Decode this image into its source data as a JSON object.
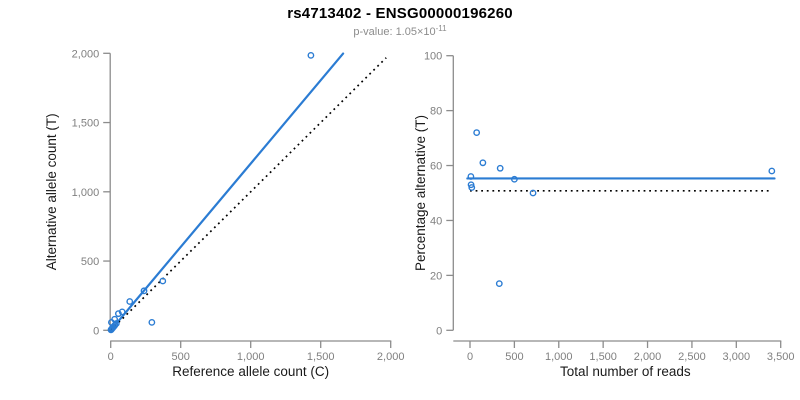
{
  "header": {
    "title": "rs4713402 - ENSG00000196260",
    "pvalue_text": "p-value: 1.05×10",
    "pvalue_exponent": "-11"
  },
  "colors": {
    "accent_blue": "#2b7cd3",
    "axis_line": "#8c8c8c",
    "tick_label": "#7f7f7f",
    "axis_title": "#1a1a1a",
    "identity_line": "#000000",
    "subtitle_text": "#8c8c8c"
  },
  "chart_data": [
    {
      "id": "allele-counts",
      "type": "scatter",
      "title": "",
      "xlabel": "Reference allele count (C)",
      "ylabel": "Alternative allele count (T)",
      "xlim": [
        0,
        2000
      ],
      "ylim": [
        0,
        2000
      ],
      "xticks": [
        0,
        500,
        1000,
        1500,
        2000
      ],
      "xtick_labels": [
        "0",
        "500",
        "1,000",
        "1,500",
        "2,000"
      ],
      "yticks": [
        0,
        500,
        1000,
        1500,
        2000
      ],
      "ytick_labels": [
        "0",
        "500",
        "1,000",
        "1,500",
        "2,000"
      ],
      "grid": false,
      "legend": "none",
      "points": [
        [
          2,
          3
        ],
        [
          6,
          8
        ],
        [
          10,
          13
        ],
        [
          15,
          19
        ],
        [
          22,
          27
        ],
        [
          30,
          37
        ],
        [
          40,
          49
        ],
        [
          5,
          57
        ],
        [
          28,
          80
        ],
        [
          55,
          120
        ],
        [
          82,
          133
        ],
        [
          136,
          208
        ],
        [
          238,
          285
        ],
        [
          294,
          57
        ],
        [
          372,
          356
        ],
        [
          1430,
          1985
        ]
      ],
      "lines": [
        {
          "name": "fitted-proportion-line",
          "style": "solid",
          "color_key": "accent_blue",
          "points": [
            [
              0,
              0
            ],
            [
              1660,
              1998
            ]
          ]
        },
        {
          "name": "identity-line",
          "style": "dotted",
          "color_key": "identity_line",
          "points": [
            [
              0,
              0
            ],
            [
              1968,
              1968
            ]
          ]
        }
      ]
    },
    {
      "id": "percentage-vs-total",
      "type": "scatter",
      "title": "",
      "xlabel": "Total number of reads",
      "ylabel": "Percentage alternative (T)",
      "xlim": [
        0,
        3500
      ],
      "ylim": [
        0,
        100
      ],
      "xticks": [
        0,
        500,
        1000,
        1500,
        2000,
        2500,
        3000,
        3500
      ],
      "xtick_labels": [
        "0",
        "500",
        "1,000",
        "1,500",
        "2,000",
        "2,500",
        "3,000",
        "3,500"
      ],
      "yticks": [
        0,
        20,
        40,
        60,
        80,
        100
      ],
      "ytick_labels": [
        "0",
        "20",
        "40",
        "60",
        "80",
        "100"
      ],
      "grid": false,
      "legend": "none",
      "points": [
        [
          10,
          56
        ],
        [
          12,
          53
        ],
        [
          20,
          52
        ],
        [
          75,
          72
        ],
        [
          145,
          61
        ],
        [
          330,
          17
        ],
        [
          340,
          59
        ],
        [
          500,
          55
        ],
        [
          710,
          50
        ],
        [
          3400,
          58
        ]
      ],
      "lines": [
        {
          "name": "mean-percentage-line",
          "style": "solid",
          "color_key": "accent_blue",
          "points": [
            [
              -30,
              55.3
            ],
            [
              3430,
              55.3
            ]
          ]
        },
        {
          "name": "expected-50-line",
          "style": "dotted",
          "color_key": "identity_line",
          "points": [
            [
              0,
              50.8
            ],
            [
              3400,
              50.8
            ]
          ]
        }
      ]
    }
  ]
}
